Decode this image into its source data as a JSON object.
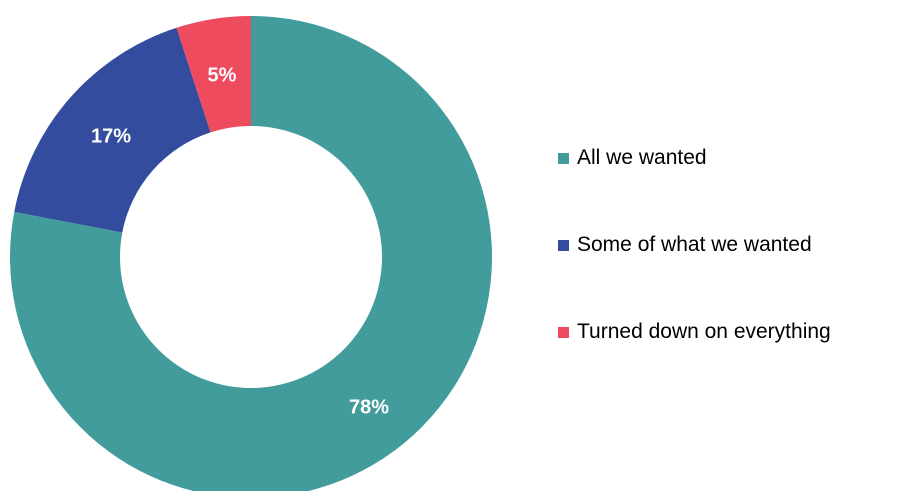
{
  "chart_data": {
    "type": "pie",
    "variant": "donut",
    "legend_position": "right",
    "series": [
      {
        "values": [
          78,
          17,
          5
        ],
        "labels": [
          "78%",
          "17%",
          "5%"
        ]
      }
    ],
    "categories": [
      "All we wanted",
      "Some of what we wanted",
      "Turned down on everything"
    ],
    "colors": [
      "#429C9C",
      "#334C9E",
      "#EE4B5E"
    ],
    "value_unit": "%"
  }
}
